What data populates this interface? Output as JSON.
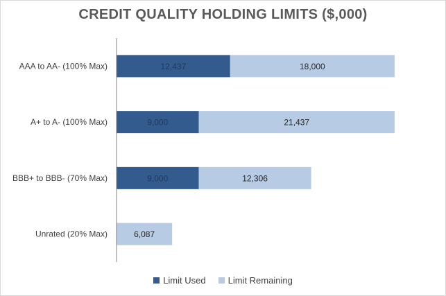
{
  "chart_data": {
    "type": "bar",
    "orientation": "horizontal",
    "stacked": true,
    "title": "CREDIT QUALITY HOLDING LIMITS ($,000)",
    "xlabel": "",
    "ylabel": "",
    "categories": [
      "AAA to AA-  (100% Max)",
      "A+ to A-  (100% Max)",
      "BBB+ to BBB- (70% Max)",
      "Unrated (20% Max)"
    ],
    "series": [
      {
        "name": "Limit Used",
        "color": "#335b8e",
        "values": [
          12437,
          9000,
          9000,
          0
        ],
        "labels": [
          "12,437",
          "9,000",
          "9,000",
          "0"
        ]
      },
      {
        "name": "Limit Remaining",
        "color": "#b7cce4",
        "values": [
          18000,
          21437,
          12306,
          6087
        ],
        "labels": [
          "18,000",
          "21,437",
          "12,306",
          "6,087"
        ]
      }
    ],
    "xlim": [
      0,
      35000
    ],
    "grid": false,
    "legend": "bottom"
  }
}
